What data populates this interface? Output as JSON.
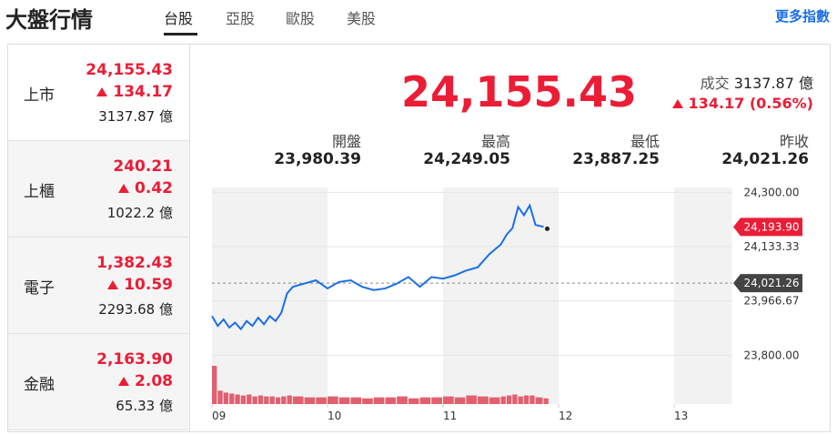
{
  "header": {
    "title": "大盤行情",
    "tabs": [
      "台股",
      "亞股",
      "歐股",
      "美股"
    ],
    "more": "更多指數"
  },
  "markets": [
    {
      "name": "上市",
      "value": "24,155.43",
      "change": 134.17,
      "volume": "3137.87 億"
    },
    {
      "name": "上櫃",
      "value": "240.21",
      "change": 0.42,
      "volume": "1022.2 億"
    },
    {
      "name": "電子",
      "value": "1,382.43",
      "change": 10.59,
      "volume": "2293.68 億"
    },
    {
      "name": "金融",
      "value": "2,163.90",
      "change": 2.08,
      "volume": "65.33 億"
    }
  ],
  "summary": {
    "value": "24,155.43",
    "volume_label": "成交",
    "volume": "3137.87 億",
    "change": "134.17 (0.56%)",
    "stats": [
      {
        "label": "開盤",
        "value": "23,980.39"
      },
      {
        "label": "最高",
        "value": "24,249.05"
      },
      {
        "label": "最低",
        "value": "23,887.25"
      },
      {
        "label": "昨收",
        "value": "24,021.26"
      }
    ]
  },
  "chart_data": {
    "type": "line",
    "color": "#1a6fe8",
    "x": [
      9.0,
      9.05,
      9.1,
      9.15,
      9.2,
      9.25,
      9.3,
      9.35,
      9.4,
      9.45,
      9.5,
      9.55,
      9.6,
      9.65,
      9.7,
      9.8,
      9.9,
      10.0,
      10.1,
      10.2,
      10.3,
      10.4,
      10.5,
      10.6,
      10.7,
      10.8,
      10.9,
      11.0,
      11.1,
      11.2,
      11.3,
      11.4,
      11.5,
      11.55,
      11.6,
      11.65,
      11.7,
      11.75,
      11.8,
      11.87
    ],
    "values": [
      23920,
      23890,
      23910,
      23885,
      23900,
      23880,
      23905,
      23890,
      23915,
      23895,
      23920,
      23905,
      23930,
      23990,
      24010,
      24020,
      24030,
      24005,
      24025,
      24030,
      24010,
      24000,
      24005,
      24020,
      24040,
      24010,
      24040,
      24035,
      24045,
      24060,
      24070,
      24110,
      24140,
      24170,
      24190,
      24255,
      24230,
      24260,
      24200,
      24193.9
    ],
    "last_label": "24,193.90",
    "reference": {
      "value": 24021.26,
      "label": "24,021.26"
    },
    "xlim": [
      9,
      13.5
    ],
    "xticks": [
      {
        "value": 9,
        "label": "09"
      },
      {
        "value": 10,
        "label": "10"
      },
      {
        "value": 11,
        "label": "11"
      },
      {
        "value": 12,
        "label": "12"
      },
      {
        "value": 13,
        "label": "13"
      }
    ],
    "ylim": [
      23650,
      24315
    ],
    "yticks": [
      {
        "value": 24300,
        "label": "24,300.00"
      },
      {
        "value": 24133.33,
        "label": "24,133.33"
      },
      {
        "value": 23966.67,
        "label": "23,966.67"
      },
      {
        "value": 23800,
        "label": "23,800.00"
      }
    ],
    "volume": [
      40,
      14,
      12,
      11,
      10,
      9,
      10,
      8,
      9,
      8,
      8,
      7,
      8,
      9,
      8,
      7,
      7,
      8,
      7,
      7,
      6,
      7,
      7,
      8,
      6,
      7,
      7,
      8,
      7,
      9,
      8,
      7,
      8,
      9,
      10,
      8,
      9,
      9,
      7,
      6
    ]
  }
}
